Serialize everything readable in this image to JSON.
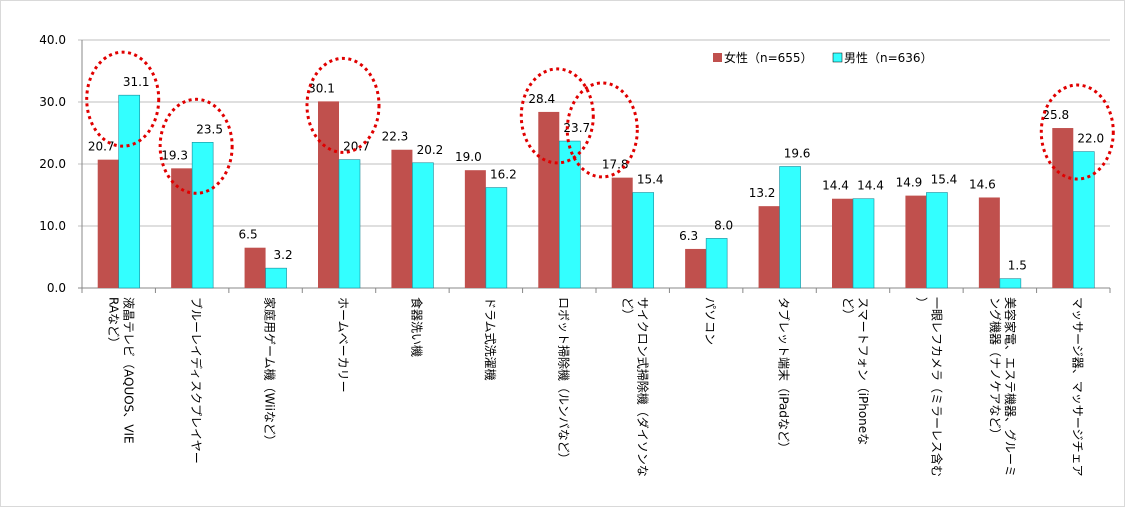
{
  "chart_data": {
    "type": "bar",
    "categories": [
      "液晶テレビ（AQUOS、VIERAなど）",
      "ブルーレイディスクプレイヤー",
      "家庭用ゲーム機（Wiiなど）",
      "ホームベーカリー",
      "食器洗い機",
      "ドラム式洗濯機",
      "ロボット掃除機（ルンバなど）",
      "サイクロン式掃除機（ダイソンなど）",
      "パソコン",
      "タブレット端末（iPadなど）",
      "スマートフォン（iPhoneなど）",
      "一眼レフカメラ（ミラーレス含む）",
      "美容家電、エステ機器、グルーミング機器（ナノケアなど）",
      "マッサージ器、マッサージチェア"
    ],
    "series": [
      {
        "name": "女性（n=655）",
        "color": "#C0504D",
        "values": [
          20.7,
          19.3,
          6.5,
          30.1,
          22.3,
          19.0,
          28.4,
          17.8,
          6.3,
          13.2,
          14.4,
          14.9,
          14.6,
          25.8
        ]
      },
      {
        "name": "男性（n=636）",
        "color": "#33FFFF",
        "values": [
          31.1,
          23.5,
          3.2,
          20.7,
          20.2,
          16.2,
          23.7,
          15.4,
          8.0,
          19.6,
          14.4,
          15.4,
          1.5,
          22.0
        ]
      }
    ],
    "value_labels": {
      "female": [
        "20.7",
        "19.3",
        "6.5",
        "30.1",
        "22.3",
        "19.0",
        "28.4",
        "17.8",
        "6.3",
        "13.2",
        "14.4",
        "14.9",
        "14.6",
        "25.8"
      ],
      "male": [
        "31.1",
        "23.5",
        "3.2",
        "20.7",
        "20.2",
        "16.2",
        "23.7",
        "15.4",
        "8.0",
        "19.6",
        "14.4",
        "15.4",
        "1.5",
        "22.0"
      ]
    },
    "yticks": [
      "0.0",
      "10.0",
      "20.0",
      "30.0",
      "40.0"
    ],
    "ylim": [
      0,
      40
    ],
    "grid": true,
    "legend_position": "top-right",
    "highlighted_categories": [
      0,
      1,
      3,
      6,
      13
    ],
    "highlight_color": "#E00000"
  }
}
